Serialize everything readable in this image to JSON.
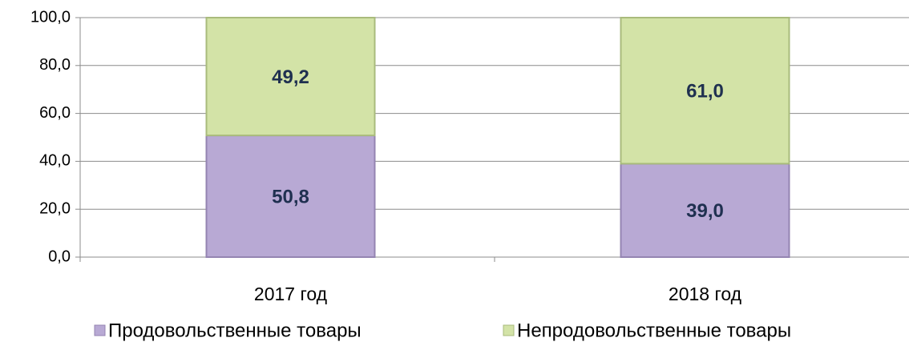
{
  "chart_data": {
    "type": "stacked_bar",
    "categories": [
      "2017 год",
      "2018 год"
    ],
    "series": [
      {
        "name": "Продовольственные товары",
        "color": "#b8a9d4",
        "values": [
          50.8,
          39.0
        ],
        "value_labels": [
          "50,8",
          "39,0"
        ]
      },
      {
        "name": "Непродовольственные товары",
        "color": "#d3e3a7",
        "values": [
          49.2,
          61.0
        ],
        "value_labels": [
          "49,2",
          "61,0"
        ]
      }
    ],
    "ylim": [
      0,
      100
    ],
    "yticks": [
      {
        "value": 0,
        "label": "0,0"
      },
      {
        "value": 20,
        "label": "20,0"
      },
      {
        "value": 40,
        "label": "40,0"
      },
      {
        "value": 60,
        "label": "60,0"
      },
      {
        "value": 80,
        "label": "80,0"
      },
      {
        "value": 100,
        "label": "100,0"
      }
    ],
    "grid": true,
    "legend": "bottom"
  }
}
